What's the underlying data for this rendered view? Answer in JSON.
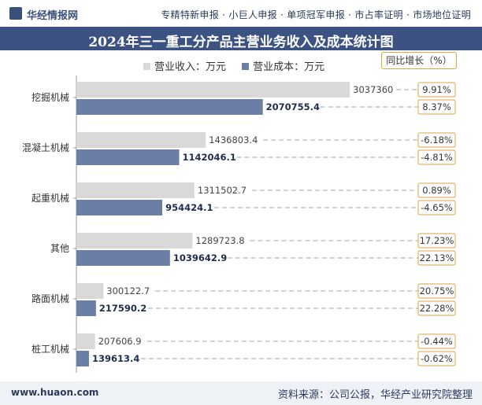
{
  "header": {
    "logo_text": "华经情报网",
    "links": "专精特新申报 · 小巨人申报 · 单项冠军申报 · 市占率证明 · 市场地位证明"
  },
  "footer": {
    "website": "www.huaon.com",
    "source": "资料来源：公司公报，华经产业研究院整理"
  },
  "yoy_label": "同比增长（%）",
  "colors": {
    "revenue": "#d9d9d9",
    "cost": "#6b7fa6",
    "title_bg": "#3b5282",
    "yoy_border": "#d9a441"
  },
  "chart_data": {
    "type": "bar",
    "orientation": "horizontal",
    "title": "2024年三一重工分产品主营业务收入及成本统计图",
    "categories": [
      "挖掘机械",
      "混凝土机械",
      "起重机械",
      "其他",
      "路面机械",
      "桩工机械"
    ],
    "series": [
      {
        "name": "营业收入：万元",
        "values": [
          3037360,
          1436803.4,
          1311502.7,
          1289723.8,
          300122.7,
          207606.9
        ],
        "labels": [
          "3037360",
          "1436803.4",
          "1311502.7",
          "1289723.8",
          "300122.7",
          "207606.9"
        ],
        "yoy": [
          "9.91%",
          "-6.18%",
          "0.89%",
          "17.23%",
          "20.75%",
          "-0.44%"
        ]
      },
      {
        "name": "营业成本：万元",
        "values": [
          2070755.4,
          1142046.1,
          954424.1,
          1039642.9,
          217590.2,
          139613.4
        ],
        "labels": [
          "2070755.4",
          "1142046.1",
          "954424.1",
          "1039642.9",
          "217590.2",
          "139613.4"
        ],
        "yoy": [
          "8.37%",
          "-4.81%",
          "-4.65%",
          "22.13%",
          "22.28%",
          "-0.62%"
        ]
      }
    ],
    "xlim": [
      0,
      3500000
    ],
    "legend": "top-center"
  }
}
